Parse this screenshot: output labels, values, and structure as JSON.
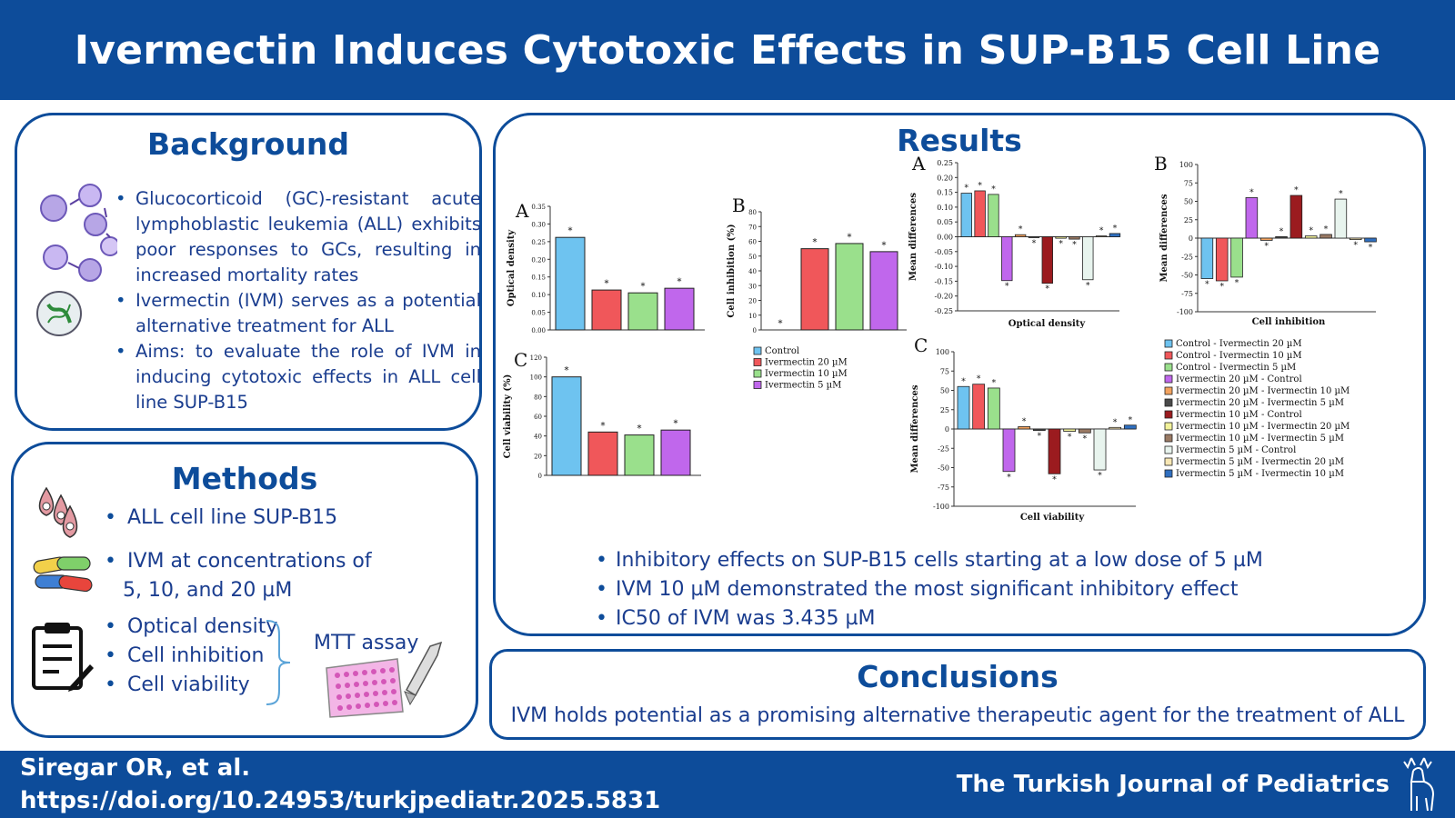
{
  "title": "Ivermectin Induces Cytotoxic Effects in SUP-B15 Cell Line",
  "background": {
    "heading": "Background",
    "bullets": [
      "Glucocorticoid (GC)-resistant acute lymphoblastic leukemia (ALL) exhibits poor responses to GCs, resulting in increased mortality rates",
      "Ivermectin (IVM) serves as a potential alternative treatment for ALL",
      "Aims: to evaluate the role of IVM in inducing cytotoxic effects in ALL cell line SUP-B15"
    ]
  },
  "methods": {
    "heading": "Methods",
    "cell_line": "ALL cell line SUP-B15",
    "ivm_line1": "IVM at concentrations of",
    "ivm_line2": "5, 10, and 20 µM",
    "assays": [
      "Optical density",
      "Cell inhibition",
      "Cell viability"
    ],
    "mtt": "MTT assay"
  },
  "results": {
    "heading": "Results",
    "bullets": [
      "Inhibitory effects on SUP-B15 cells starting at a low dose of 5 µM",
      "IVM 10 µM demonstrated the most significant inhibitory effect",
      "IC50 of IVM was 3.435 µM"
    ]
  },
  "conclusions": {
    "heading": "Conclusions",
    "text": "IVM holds potential as a promising alternative therapeutic agent for the treatment of ALL"
  },
  "footer": {
    "author": "Siregar OR, et al.",
    "doi": "https://doi.org/10.24953/turkjpediatr.2025.5831",
    "journal": "The Turkish Journal of Pediatrics"
  },
  "colors": {
    "brand": "#0d4c9a",
    "control": "#6ec3f0",
    "ivm20": "#f0575a",
    "ivm10": "#9ae08c",
    "ivm5": "#c067ec"
  },
  "chart_data": [
    {
      "panel": "A",
      "type": "bar",
      "ylabel": "Optical density",
      "ylim": [
        0,
        0.35
      ],
      "yticks": [
        "0.00",
        "0.05",
        "0.10",
        "0.15",
        "0.20",
        "0.25",
        "0.30",
        "0.35"
      ],
      "categories": [
        "Control",
        "Ivermectin 20 µM",
        "Ivermectin 10 µM",
        "Ivermectin 5 µM"
      ],
      "values": [
        0.262,
        0.113,
        0.105,
        0.118
      ],
      "colors": [
        "#6ec3f0",
        "#f0575a",
        "#9ae08c",
        "#c067ec"
      ]
    },
    {
      "panel": "B",
      "type": "bar",
      "ylabel": "Cell inhibition (%)",
      "ylim": [
        0,
        80
      ],
      "yticks": [
        "0",
        "10",
        "20",
        "30",
        "40",
        "50",
        "60",
        "70",
        "80"
      ],
      "categories": [
        "Control",
        "Ivermectin 20 µM",
        "Ivermectin 10 µM",
        "Ivermectin 5 µM"
      ],
      "values": [
        0,
        55,
        58.5,
        53
      ],
      "colors": [
        "#6ec3f0",
        "#f0575a",
        "#9ae08c",
        "#c067ec"
      ],
      "legend": [
        "Control",
        "Ivermectin 20 µM",
        "Ivermectin 10 µM",
        "Ivermectin 5 µM"
      ]
    },
    {
      "panel": "C",
      "type": "bar",
      "ylabel": "Cell viability (%)",
      "ylim": [
        0,
        120
      ],
      "yticks": [
        "0",
        "20",
        "40",
        "60",
        "80",
        "100",
        "120"
      ],
      "categories": [
        "Control",
        "Ivermectin 20 µM",
        "Ivermectin 10 µM",
        "Ivermectin 5 µM"
      ],
      "values": [
        100,
        44,
        41,
        46
      ],
      "colors": [
        "#6ec3f0",
        "#f0575a",
        "#9ae08c",
        "#c067ec"
      ]
    },
    {
      "panel": "A",
      "type": "bar",
      "ylabel": "Mean differences",
      "xlabel": "Optical density",
      "ylim": [
        -0.25,
        0.25
      ],
      "yticks": [
        "0.25",
        "0.20",
        "0.15",
        "0.10",
        "0.05",
        "0.00",
        "-0.05",
        "-0.10",
        "-0.15",
        "-0.20",
        "-0.25"
      ],
      "values": [
        0.147,
        0.155,
        0.143,
        -0.148,
        0.007,
        -0.003,
        -0.157,
        -0.005,
        -0.008,
        -0.145,
        0.003,
        0.011
      ]
    },
    {
      "panel": "B",
      "type": "bar",
      "ylabel": "Mean differences",
      "xlabel": "Cell inhibition",
      "ylim": [
        -100,
        100
      ],
      "yticks": [
        "100",
        "75",
        "50",
        "25",
        "0",
        "-25",
        "-50",
        "-75",
        "-100"
      ],
      "values": [
        -55,
        -58,
        -53,
        55,
        -3,
        2,
        58,
        3,
        5,
        53,
        -2,
        -5
      ]
    },
    {
      "panel": "C",
      "type": "bar",
      "ylabel": "Mean differences",
      "xlabel": "Cell viability",
      "ylim": [
        -100,
        100
      ],
      "yticks": [
        "100",
        "75",
        "50",
        "25",
        "0",
        "-25",
        "-50",
        "-75",
        "-100"
      ],
      "values": [
        55,
        58,
        53,
        -55,
        3,
        -2,
        -58,
        -3,
        -5,
        -53,
        2,
        5
      ]
    }
  ],
  "comparison_legend": [
    {
      "label": "Control - Ivermectin 20 µM",
      "color": "#6ec3f0"
    },
    {
      "label": "Control - Ivermectin 10 µM",
      "color": "#f0575a"
    },
    {
      "label": "Control - Ivermectin 5 µM",
      "color": "#9ae08c"
    },
    {
      "label": "Ivermectin 20 µM - Control",
      "color": "#c067ec"
    },
    {
      "label": "Ivermectin 20 µM - Ivermectin 10 µM",
      "color": "#f4a35f"
    },
    {
      "label": "Ivermectin 20 µM - Ivermectin 5 µM",
      "color": "#4a4a4a"
    },
    {
      "label": "Ivermectin 10 µM - Control",
      "color": "#9b1b1f"
    },
    {
      "label": "Ivermectin 10 µM - Ivermectin 20 µM",
      "color": "#f2f29a"
    },
    {
      "label": "Ivermectin 10 µM - Ivermectin 5 µM",
      "color": "#9a7a64"
    },
    {
      "label": "Ivermectin 5 µM - Control",
      "color": "#e8f4ee"
    },
    {
      "label": "Ivermectin 5 µM - Ivermectin 20 µM",
      "color": "#f8e7b4"
    },
    {
      "label": "Ivermectin 5 µM - Ivermectin 10 µM",
      "color": "#2f6fc0"
    }
  ]
}
